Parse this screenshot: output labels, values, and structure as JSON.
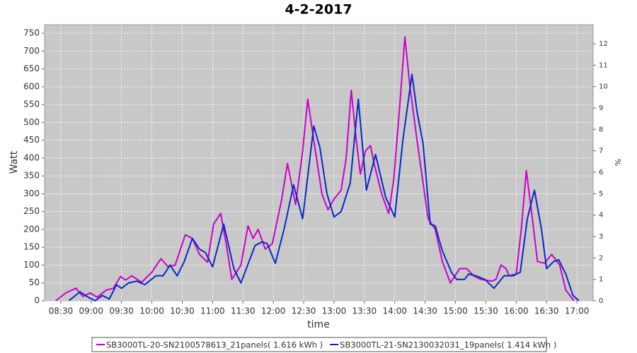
{
  "chart_data": {
    "type": "line",
    "title": "4-2-2017",
    "x_label": "time",
    "y_label": "Watt",
    "y2_label": "%",
    "xlim": [
      494,
      1036
    ],
    "xticks": [
      {
        "value": 510,
        "label": "08:30"
      },
      {
        "value": 540,
        "label": "09:00"
      },
      {
        "value": 570,
        "label": "09:30"
      },
      {
        "value": 600,
        "label": "10:00"
      },
      {
        "value": 630,
        "label": "10:30"
      },
      {
        "value": 660,
        "label": "11:00"
      },
      {
        "value": 690,
        "label": "11:30"
      },
      {
        "value": 720,
        "label": "12:00"
      },
      {
        "value": 750,
        "label": "12:30"
      },
      {
        "value": 780,
        "label": "13:00"
      },
      {
        "value": 810,
        "label": "13:30"
      },
      {
        "value": 840,
        "label": "14:00"
      },
      {
        "value": 870,
        "label": "14:30"
      },
      {
        "value": 900,
        "label": "15:00"
      },
      {
        "value": 930,
        "label": "15:30"
      },
      {
        "value": 960,
        "label": "16:00"
      },
      {
        "value": 990,
        "label": "16:30"
      },
      {
        "value": 1020,
        "label": "17:00"
      }
    ],
    "ylim": [
      0,
      774
    ],
    "yticks": [
      0,
      50,
      100,
      150,
      200,
      250,
      300,
      350,
      400,
      450,
      500,
      550,
      600,
      650,
      700,
      750
    ],
    "y2lim": [
      0,
      12.89
    ],
    "y2ticks": [
      0,
      1,
      2,
      3,
      4,
      5,
      6,
      7,
      8,
      9,
      10,
      11,
      12
    ],
    "grid": true,
    "legend": "bottom",
    "series": [
      {
        "name": "SB3000TL-20-SN2100578613_21panels( 1.616 kWh )",
        "color": "#cc00cc",
        "x": [
          505,
          515,
          525,
          532,
          539,
          546,
          555,
          562,
          569,
          574,
          580,
          590,
          600,
          609,
          616,
          623,
          633,
          640,
          647,
          655,
          661,
          668,
          674,
          679,
          688,
          695,
          700,
          705,
          712,
          719,
          728,
          734,
          742,
          749,
          754,
          760,
          768,
          774,
          780,
          787,
          792,
          797,
          802,
          806,
          811,
          816,
          820,
          827,
          834,
          839,
          845,
          850,
          855,
          862,
          868,
          873,
          880,
          887,
          895,
          904,
          911,
          918,
          925,
          936,
          940,
          945,
          950,
          953,
          960,
          965,
          970,
          976,
          981,
          988,
          995,
          1003,
          1009,
          1017
        ],
        "values": [
          0,
          22,
          35,
          12,
          22,
          10,
          30,
          35,
          68,
          58,
          70,
          52,
          80,
          118,
          95,
          100,
          185,
          175,
          130,
          108,
          215,
          245,
          150,
          60,
          100,
          210,
          175,
          200,
          145,
          160,
          280,
          385,
          270,
          420,
          565,
          450,
          300,
          255,
          285,
          310,
          400,
          590,
          450,
          355,
          420,
          435,
          380,
          300,
          245,
          340,
          550,
          740,
          600,
          450,
          330,
          230,
          200,
          110,
          50,
          90,
          90,
          70,
          60,
          55,
          60,
          100,
          90,
          70,
          75,
          200,
          365,
          230,
          110,
          105,
          130,
          100,
          30,
          0
        ]
      },
      {
        "name": "SB3000TL-21-SN2130032031_19panels( 1.414 kWh )",
        "color": "#0a28c8",
        "x": [
          518,
          529,
          537,
          544,
          551,
          558,
          565,
          570,
          577,
          585,
          593,
          604,
          611,
          618,
          625,
          632,
          640,
          647,
          653,
          660,
          671,
          681,
          688,
          702,
          709,
          714,
          722,
          731,
          740,
          749,
          760,
          766,
          773,
          780,
          787,
          796,
          804,
          812,
          821,
          831,
          840,
          848,
          857,
          862,
          868,
          875,
          880,
          887,
          896,
          901,
          909,
          913,
          920,
          929,
          938,
          948,
          957,
          964,
          971,
          978,
          985,
          990,
          997,
          1002,
          1009,
          1016,
          1022
        ],
        "values": [
          0,
          25,
          10,
          0,
          15,
          5,
          45,
          35,
          50,
          55,
          45,
          70,
          70,
          100,
          70,
          110,
          175,
          145,
          135,
          95,
          215,
          90,
          50,
          155,
          165,
          160,
          105,
          205,
          325,
          230,
          490,
          430,
          300,
          235,
          250,
          330,
          565,
          310,
          410,
          290,
          235,
          450,
          635,
          530,
          440,
          215,
          210,
          140,
          80,
          60,
          60,
          75,
          70,
          60,
          35,
          70,
          70,
          80,
          230,
          310,
          200,
          90,
          110,
          115,
          75,
          15,
          0
        ]
      }
    ]
  }
}
